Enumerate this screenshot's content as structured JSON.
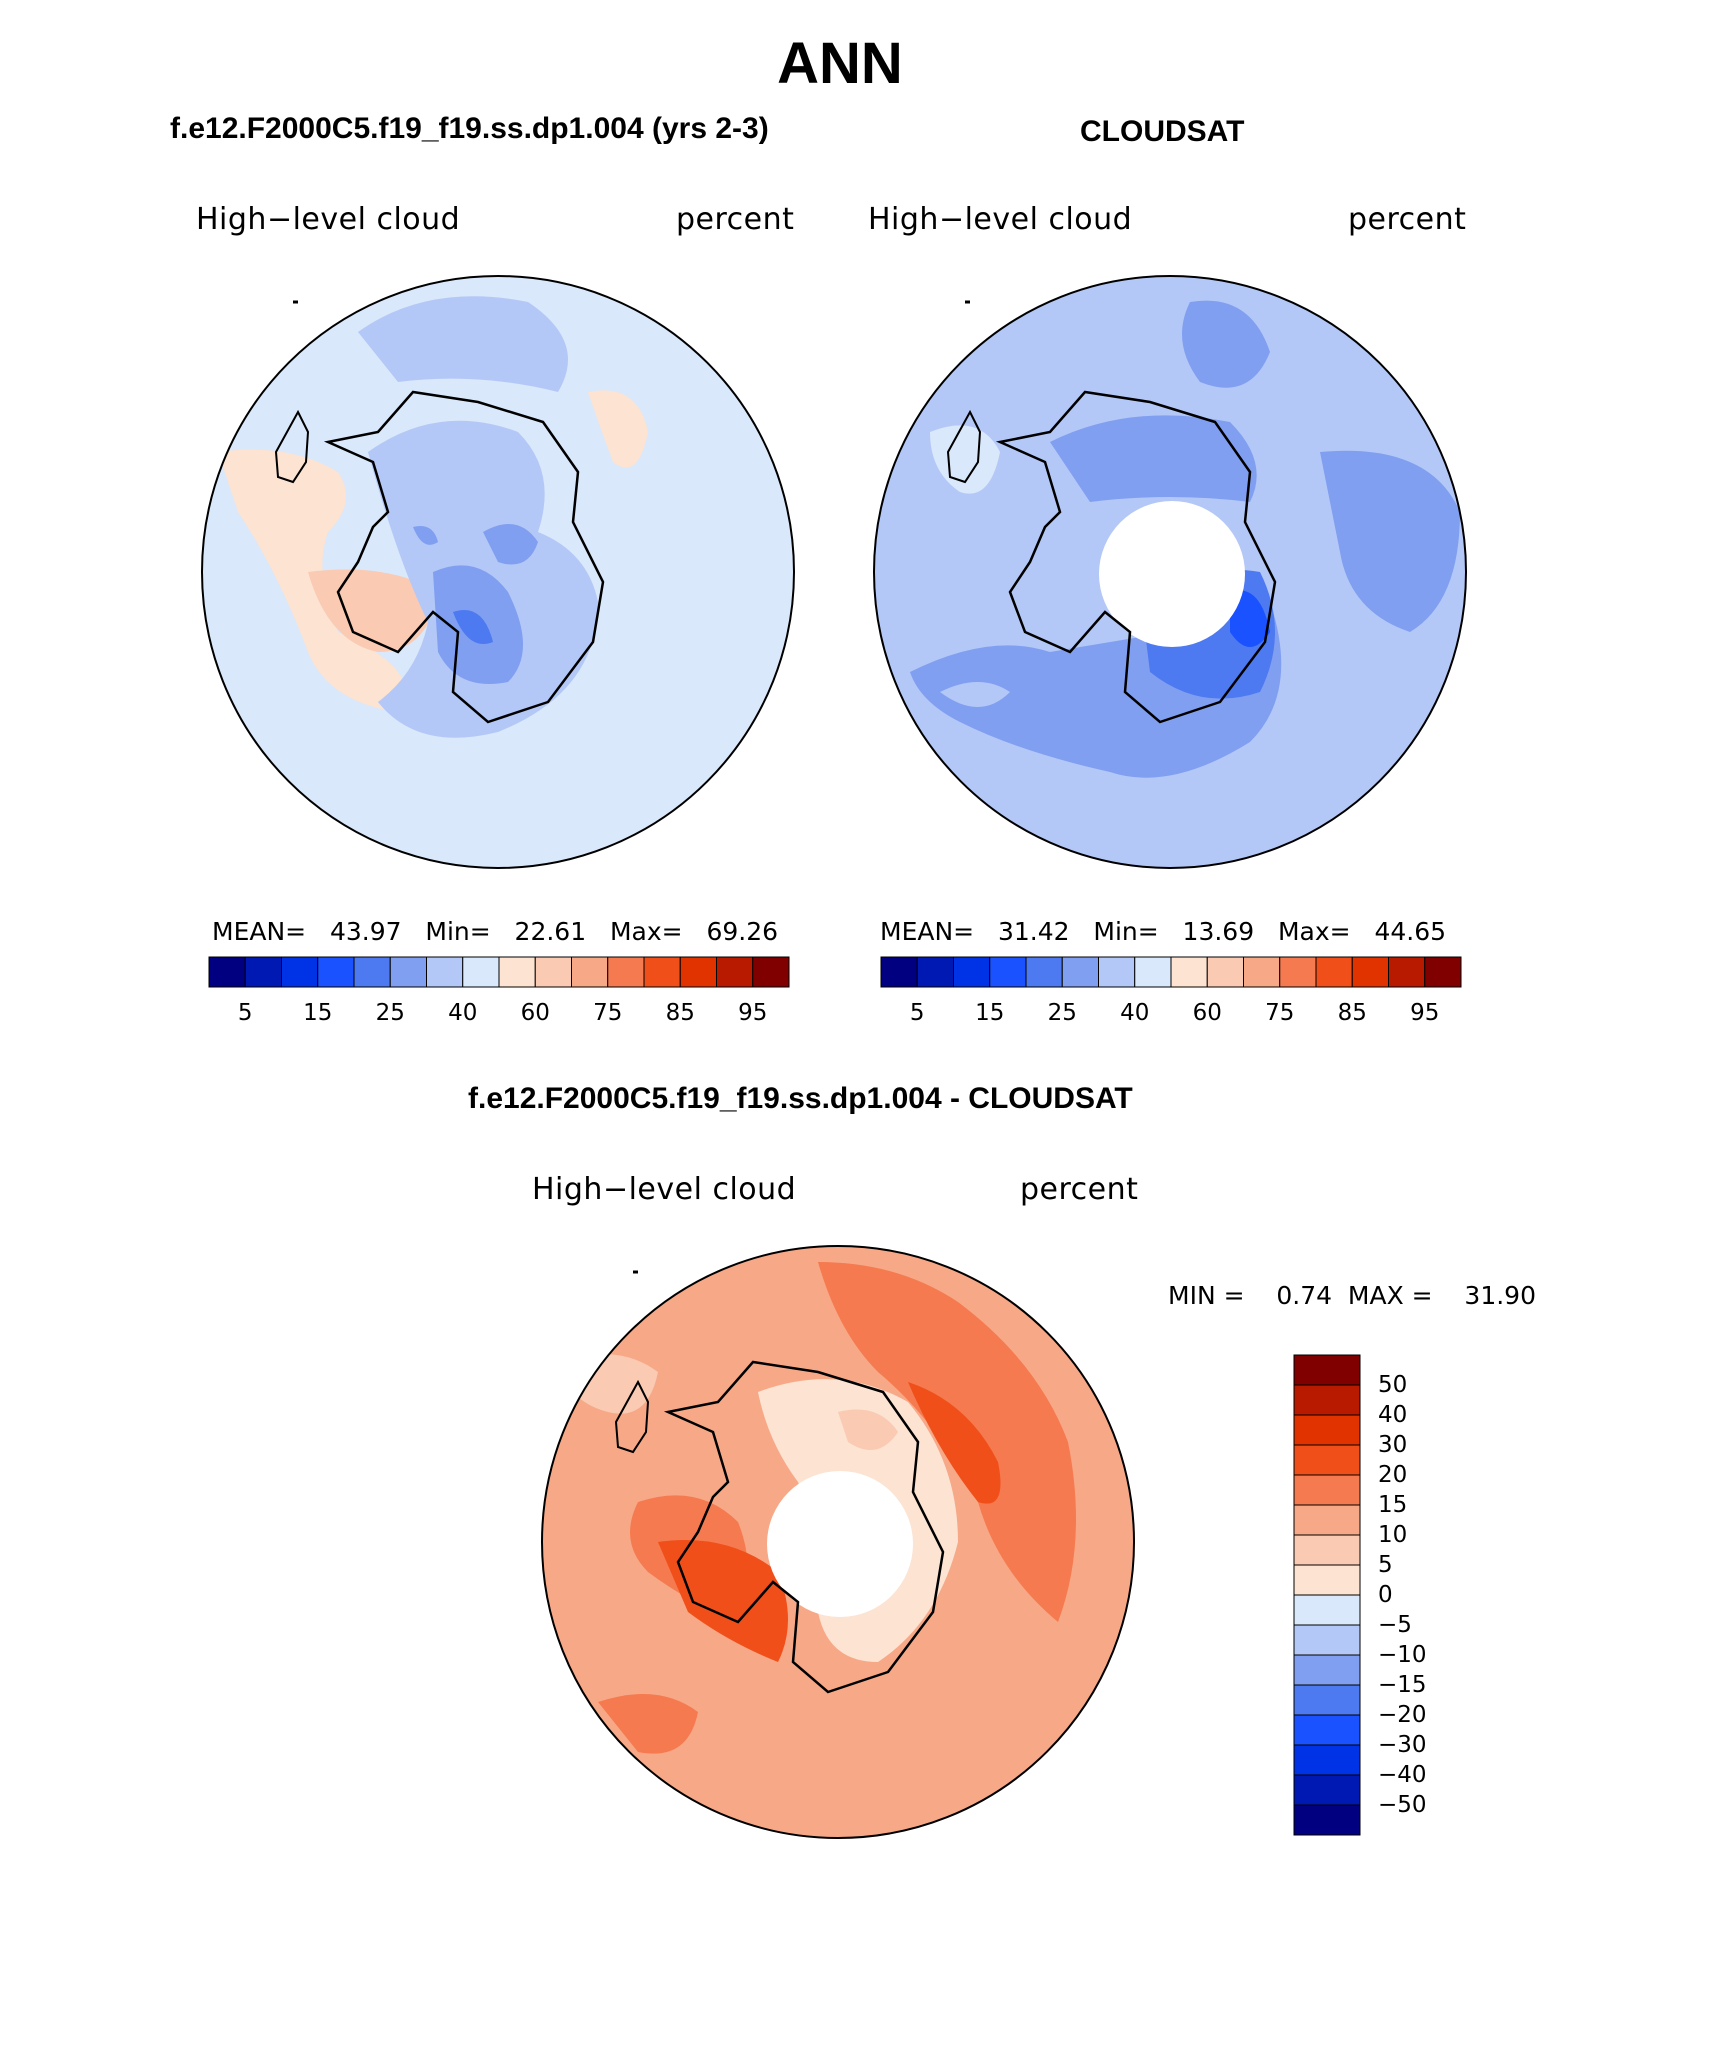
{
  "page_title": "ANN",
  "panels": {
    "model": {
      "title": "f.e12.F2000C5.f19_f19.ss.dp1.004 (yrs 2-3)",
      "var_label": "High−level cloud",
      "units": "percent",
      "mean_label": "MEAN=",
      "mean": "43.97",
      "min_label": "Min=",
      "min": "22.61",
      "max_label": "Max=",
      "max": "69.26"
    },
    "obs": {
      "title": "CLOUDSAT",
      "var_label": "High−level cloud",
      "units": "percent",
      "mean_label": "MEAN=",
      "mean": "31.42",
      "min_label": "Min=",
      "min": "13.69",
      "max_label": "Max=",
      "max": "44.65"
    },
    "diff": {
      "title": "f.e12.F2000C5.f19_f19.ss.dp1.004 - CLOUDSAT",
      "var_label": "High−level cloud",
      "units": "percent",
      "min_label": "MIN =",
      "min": "0.74",
      "max_label": "MAX =",
      "max": "31.90"
    }
  },
  "abs_colorbar": {
    "colors": [
      "#000080",
      "#0019b3",
      "#0033e6",
      "#1a52ff",
      "#4d7af0",
      "#809ff0",
      "#b3c8f7",
      "#d9e8fa",
      "#fce3d2",
      "#facab3",
      "#f7a887",
      "#f57a4f",
      "#f04f1a",
      "#e03300",
      "#b81a00",
      "#800000"
    ],
    "labels": [
      "5",
      "15",
      "25",
      "40",
      "60",
      "75",
      "85",
      "95"
    ]
  },
  "diff_colorbar": {
    "colors": [
      "#800000",
      "#b81a00",
      "#e03300",
      "#f04f1a",
      "#f57a4f",
      "#f7a887",
      "#facab3",
      "#fce3d2",
      "#d9e8fa",
      "#b3c8f7",
      "#809ff0",
      "#4d7af0",
      "#1a52ff",
      "#0033e6",
      "#0019b3",
      "#000080"
    ],
    "labels": [
      "50",
      "40",
      "30",
      "20",
      "15",
      "10",
      "5",
      "0",
      "−5",
      "−10",
      "−15",
      "−20",
      "−30",
      "−40",
      "−50"
    ]
  }
}
